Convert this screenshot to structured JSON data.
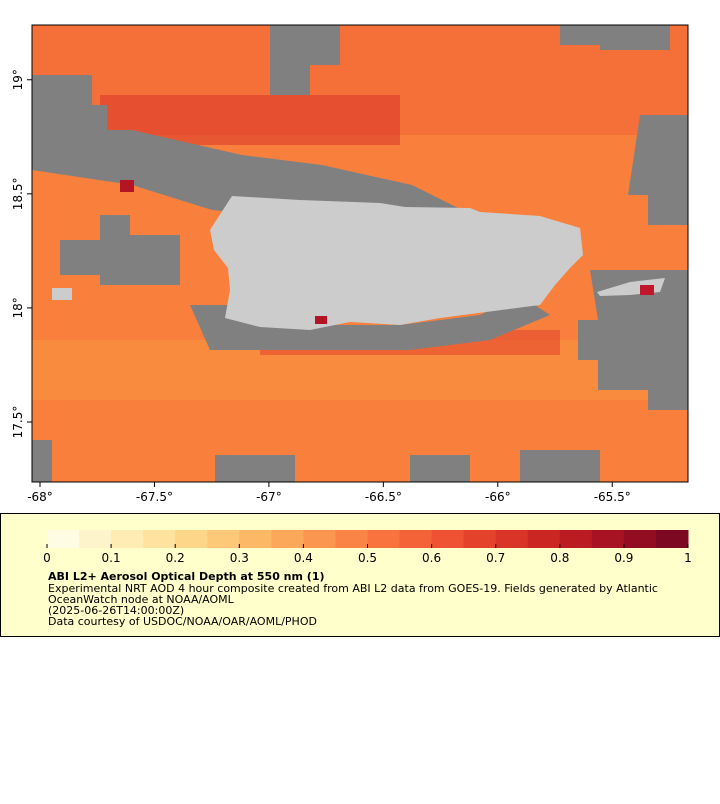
{
  "map": {
    "xlim": [
      -68.035,
      -65.169
    ],
    "ylim": [
      17.237,
      19.24
    ],
    "xticks": [
      {
        "value": -68,
        "label": "-68°"
      },
      {
        "value": -67.5,
        "label": "-67.5°"
      },
      {
        "value": -67,
        "label": "-67°"
      },
      {
        "value": -66.5,
        "label": "-66.5°"
      },
      {
        "value": -66,
        "label": "-66°"
      },
      {
        "value": -65.5,
        "label": "-65.5°"
      }
    ],
    "yticks": [
      {
        "value": 17.5,
        "label": "17.5°"
      },
      {
        "value": 18,
        "label": "18°"
      },
      {
        "value": 18.5,
        "label": "18.5°"
      },
      {
        "value": 19,
        "label": "19°"
      }
    ]
  },
  "colorbar": {
    "lim": [
      0,
      1
    ],
    "ticks": [
      0,
      0.1,
      0.2,
      0.3,
      0.4,
      0.5,
      0.6,
      0.7,
      0.8,
      0.9,
      1
    ],
    "colors": [
      "#fffce4",
      "#fef4cc",
      "#feecb4",
      "#fee29e",
      "#fdd68a",
      "#fdc877",
      "#fdb866",
      "#fca85a",
      "#fb9650",
      "#fa8446",
      "#f8733e",
      "#f46238",
      "#ee5232",
      "#e5422c",
      "#da3327",
      "#cc2623",
      "#bb1b22",
      "#a71322",
      "#920c22",
      "#7c0822"
    ]
  },
  "legend": {
    "title": "ABI L2+ Aerosol Optical Depth at 550 nm (1)",
    "lines": [
      "Experimental NRT AOD 4 hour composite created from ABI L2 data from GOES-19. Fields generated by Atlantic",
      "OceanWatch node at NOAA/AOML",
      "(2025-06-26T14:00:00Z)",
      "Data courtesy of USDOC/NOAA/OAR/AOML/PHOD"
    ]
  }
}
